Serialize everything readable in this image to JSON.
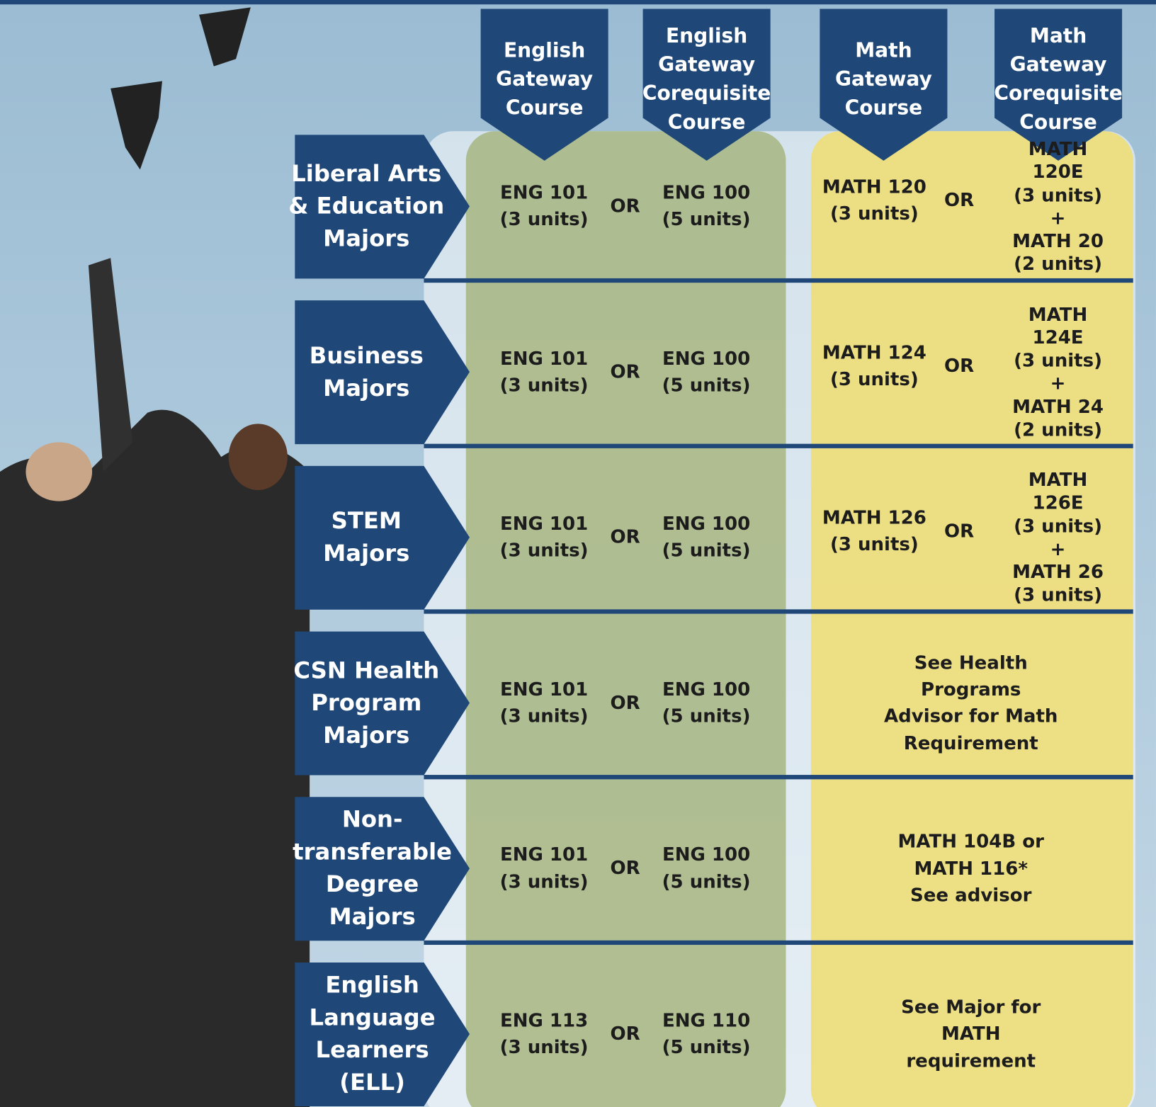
{
  "headers": [
    "English\nGateway\nCourse",
    "English\nGateway\nCorequisite\nCourse",
    "Math\nGateway\nCourse",
    "Math\nGateway\nCorequisite\nCourse"
  ],
  "rows": [
    {
      "label": "Liberal Arts\n& Education\nMajors",
      "english": [
        "ENG 101\n(3 units)",
        "OR",
        "ENG 100\n(5 units)"
      ],
      "math": [
        "MATH 120\n(3 units)",
        "OR",
        "MATH 120E\n(3 units) +\nMATH 20\n(2 units)"
      ]
    },
    {
      "label": "Business\nMajors",
      "english": [
        "ENG 101\n(3 units)",
        "OR",
        "ENG 100\n(5 units)"
      ],
      "math": [
        "MATH 124\n(3 units)",
        "OR",
        "MATH 124E\n(3 units) +\nMATH 24\n(2 units)"
      ]
    },
    {
      "label": "STEM\nMajors",
      "english": [
        "ENG 101\n(3 units)",
        "OR",
        "ENG 100\n(5 units)"
      ],
      "math": [
        "MATH 126\n(3 units)",
        "OR",
        "MATH 126E\n(3 units) +\nMATH 26\n(3 units)"
      ]
    },
    {
      "label": "CSN Health\nProgram\nMajors",
      "english": [
        "ENG 101\n(3 units)",
        "OR",
        "ENG 100\n(5 units)"
      ],
      "math": [
        "See Health Programs\nAdvisor for Math\nRequirement"
      ]
    },
    {
      "label": "Non-\ntransferable\nDegree\nMajors",
      "english": [
        "ENG 101\n(3 units)",
        "OR",
        "ENG 100\n(5 units)"
      ],
      "math": [
        "MATH 104B or MATH 116*\nSee advisor"
      ]
    },
    {
      "label": "English\nLanguage\nLearners\n(ELL)",
      "english": [
        "ENG 113\n(3 units)",
        "OR",
        "ENG 110\n(5 units)"
      ],
      "math": [
        "See Major for MATH\nrequirement"
      ]
    }
  ]
}
